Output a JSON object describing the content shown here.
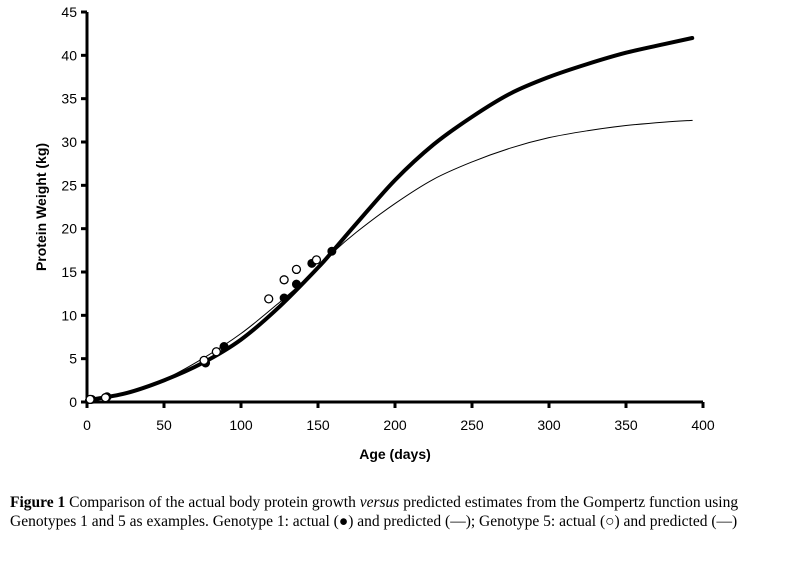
{
  "chart_data": {
    "type": "line",
    "title": "",
    "xlabel": "Age (days)",
    "ylabel": "Protein Weight (kg)",
    "xlim": [
      0,
      400
    ],
    "ylim": [
      0,
      45
    ],
    "xticks": [
      0,
      50,
      100,
      150,
      200,
      250,
      300,
      350,
      400
    ],
    "yticks": [
      0,
      5,
      10,
      15,
      20,
      25,
      30,
      35,
      40,
      45
    ],
    "grid": false,
    "series": [
      {
        "name": "Genotype 1: actual",
        "kind": "scatter",
        "marker": "filled-circle",
        "points": [
          [
            3,
            0.3
          ],
          [
            13,
            0.6
          ],
          [
            77,
            4.5
          ],
          [
            89,
            6.4
          ],
          [
            128,
            12.0
          ],
          [
            136,
            13.6
          ],
          [
            146,
            16.0
          ],
          [
            159,
            17.4
          ]
        ]
      },
      {
        "name": "Genotype 5: actual",
        "kind": "scatter",
        "marker": "open-circle",
        "points": [
          [
            2,
            0.3
          ],
          [
            12,
            0.5
          ],
          [
            76,
            4.8
          ],
          [
            84,
            5.8
          ],
          [
            118,
            11.9
          ],
          [
            128,
            14.1
          ],
          [
            136,
            15.3
          ],
          [
            149,
            16.4
          ]
        ]
      },
      {
        "name": "Genotype 1: predicted",
        "kind": "line",
        "linestyle": "thick",
        "points": [
          [
            0,
            0.2
          ],
          [
            25,
            1.0
          ],
          [
            50,
            2.5
          ],
          [
            75,
            4.5
          ],
          [
            100,
            7.2
          ],
          [
            125,
            11.0
          ],
          [
            150,
            15.5
          ],
          [
            160,
            17.5
          ],
          [
            175,
            20.6
          ],
          [
            200,
            25.6
          ],
          [
            225,
            29.7
          ],
          [
            250,
            32.9
          ],
          [
            275,
            35.6
          ],
          [
            300,
            37.5
          ],
          [
            325,
            39.0
          ],
          [
            350,
            40.3
          ],
          [
            375,
            41.3
          ],
          [
            393,
            42.0
          ]
        ]
      },
      {
        "name": "Genotype 5: predicted",
        "kind": "line",
        "linestyle": "thin",
        "points": [
          [
            0,
            0.2
          ],
          [
            25,
            1.0
          ],
          [
            50,
            2.6
          ],
          [
            75,
            5.0
          ],
          [
            100,
            7.9
          ],
          [
            125,
            11.5
          ],
          [
            150,
            15.4
          ],
          [
            160,
            17.3
          ],
          [
            175,
            19.6
          ],
          [
            200,
            22.9
          ],
          [
            225,
            25.7
          ],
          [
            250,
            27.7
          ],
          [
            275,
            29.3
          ],
          [
            300,
            30.5
          ],
          [
            325,
            31.3
          ],
          [
            350,
            31.9
          ],
          [
            375,
            32.3
          ],
          [
            393,
            32.5
          ]
        ]
      }
    ]
  },
  "caption": {
    "label": "Figure 1",
    "text_before": "  Comparison of the actual body protein growth ",
    "emphasis": "versus",
    "text_after": " predicted estimates from the Gompertz function using Genotypes 1 and 5 as examples. Genotype 1: actual (●) and predicted (—); Genotype 5: actual (○) and predicted (—)"
  }
}
